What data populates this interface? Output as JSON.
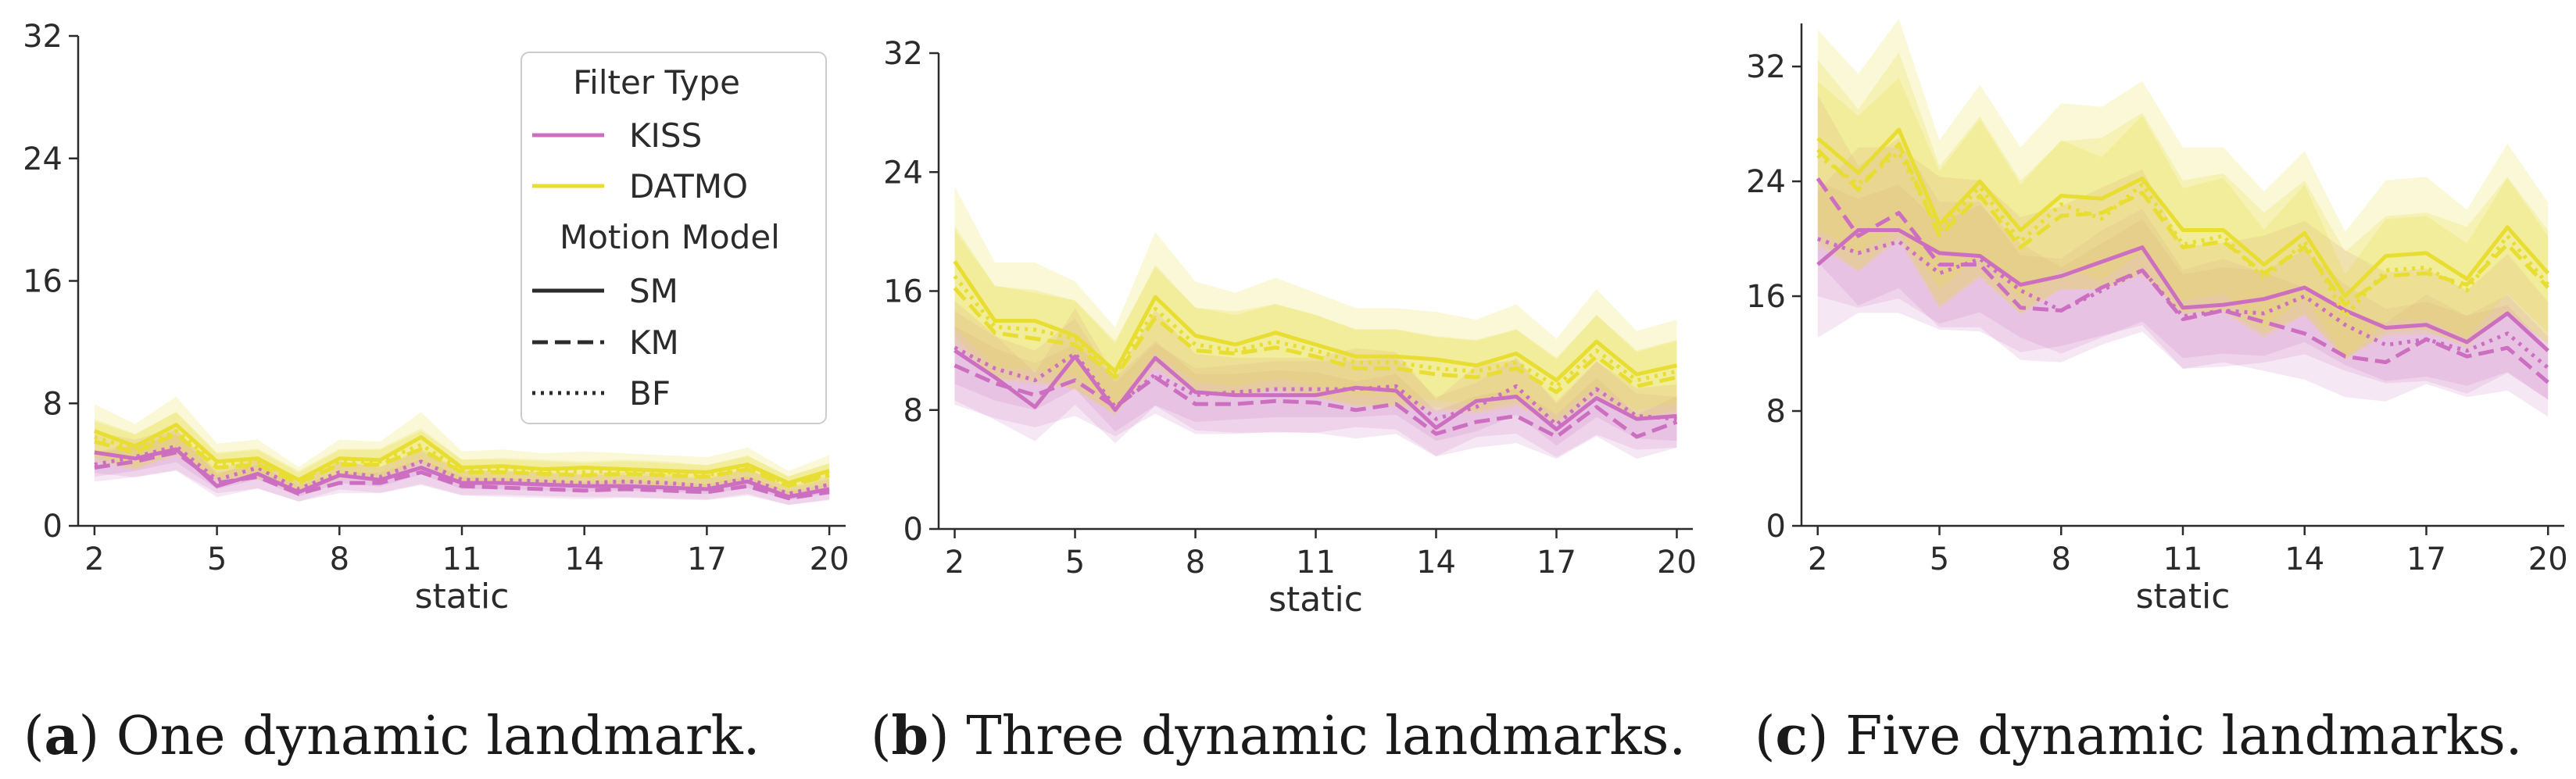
{
  "colors": {
    "KISS": "#cc6fc0",
    "DATMO": "#e8dd32",
    "axis": "#2b2b2b"
  },
  "legend": {
    "title1": "Filter Type",
    "title2": "Motion Model",
    "filters": [
      {
        "name": "KISS"
      },
      {
        "name": "DATMO"
      }
    ],
    "models": [
      {
        "name": "SM",
        "style": "solid"
      },
      {
        "name": "KM",
        "style": "dashed"
      },
      {
        "name": "BF",
        "style": "dotted"
      }
    ]
  },
  "chart_data": [
    {
      "type": "line",
      "panel": "a",
      "caption_letter": "a",
      "caption_text": "One dynamic landmark.",
      "xlabel": "static",
      "xlim": [
        1.6,
        20.4
      ],
      "ylim": [
        0,
        32
      ],
      "xticks": [
        "2",
        "5",
        "8",
        "11",
        "14",
        "17",
        "20"
      ],
      "yticks": [
        "0",
        "8",
        "16",
        "24",
        "32"
      ],
      "x": [
        2,
        3,
        4,
        5,
        6,
        7,
        8,
        9,
        10,
        11,
        12,
        13,
        14,
        15,
        16,
        17,
        18,
        19,
        20
      ],
      "series": [
        {
          "name": "KISS",
          "model": "SM",
          "values": [
            4.8,
            4.4,
            5.0,
            2.6,
            3.4,
            2.2,
            3.3,
            3.0,
            3.8,
            2.8,
            2.8,
            2.7,
            2.6,
            2.6,
            2.5,
            2.4,
            2.9,
            1.9,
            2.4
          ]
        },
        {
          "name": "KISS",
          "model": "KM",
          "values": [
            3.8,
            4.2,
            4.8,
            2.8,
            3.2,
            2.1,
            2.8,
            2.8,
            3.5,
            2.6,
            2.5,
            2.4,
            2.3,
            2.4,
            2.3,
            2.2,
            2.6,
            1.8,
            2.2
          ]
        },
        {
          "name": "KISS",
          "model": "BF",
          "values": [
            4.0,
            4.5,
            5.2,
            3.0,
            3.8,
            2.4,
            3.5,
            3.2,
            4.2,
            3.0,
            3.0,
            2.9,
            2.8,
            2.9,
            2.8,
            2.6,
            3.1,
            2.1,
            2.7
          ]
        },
        {
          "name": "DATMO",
          "model": "SM",
          "values": [
            6.2,
            5.2,
            6.6,
            4.2,
            4.4,
            3.0,
            4.4,
            4.3,
            5.8,
            3.8,
            3.9,
            3.7,
            3.8,
            3.7,
            3.6,
            3.5,
            4.0,
            2.8,
            3.6
          ]
        },
        {
          "name": "DATMO",
          "model": "KM",
          "values": [
            5.5,
            4.8,
            6.0,
            3.8,
            4.0,
            2.8,
            4.0,
            4.0,
            5.0,
            3.5,
            3.5,
            3.4,
            3.3,
            3.4,
            3.3,
            3.2,
            3.7,
            2.6,
            3.3
          ]
        },
        {
          "name": "DATMO",
          "model": "BF",
          "values": [
            5.8,
            5.0,
            6.2,
            4.0,
            4.2,
            3.0,
            4.2,
            4.2,
            5.3,
            3.6,
            3.7,
            3.6,
            3.5,
            3.6,
            3.5,
            3.3,
            3.8,
            2.7,
            3.4
          ]
        }
      ]
    },
    {
      "type": "line",
      "panel": "b",
      "caption_letter": "b",
      "caption_text": "Three dynamic landmarks.",
      "xlabel": "static",
      "xlim": [
        1.6,
        20.4
      ],
      "ylim": [
        0,
        32
      ],
      "xticks": [
        "2",
        "5",
        "8",
        "11",
        "14",
        "17",
        "20"
      ],
      "yticks": [
        "0",
        "8",
        "16",
        "24",
        "32"
      ],
      "x": [
        2,
        3,
        4,
        5,
        6,
        7,
        8,
        9,
        10,
        11,
        12,
        13,
        14,
        15,
        16,
        17,
        18,
        19,
        20
      ],
      "series": [
        {
          "name": "KISS",
          "model": "SM",
          "values": [
            12.0,
            10.2,
            8.2,
            11.6,
            8.0,
            11.5,
            9.2,
            9.0,
            9.0,
            9.0,
            9.5,
            9.3,
            6.8,
            8.6,
            8.9,
            6.7,
            8.8,
            7.4,
            7.6
          ]
        },
        {
          "name": "KISS",
          "model": "KM",
          "values": [
            11.0,
            9.8,
            9.0,
            10.0,
            8.2,
            10.2,
            8.4,
            8.4,
            8.6,
            8.5,
            8.0,
            8.4,
            6.4,
            7.2,
            7.6,
            6.2,
            8.2,
            6.2,
            7.2
          ]
        },
        {
          "name": "KISS",
          "model": "BF",
          "values": [
            12.2,
            10.8,
            10.0,
            11.8,
            8.2,
            10.4,
            9.0,
            9.2,
            9.4,
            9.4,
            9.4,
            9.6,
            7.4,
            8.2,
            9.6,
            7.0,
            9.4,
            7.6,
            7.4
          ]
        },
        {
          "name": "DATMO",
          "model": "SM",
          "values": [
            18.0,
            14.0,
            14.0,
            13.0,
            10.6,
            15.6,
            13.0,
            12.4,
            13.2,
            12.4,
            11.6,
            11.6,
            11.4,
            11.0,
            11.8,
            10.0,
            12.6,
            10.4,
            11.0
          ]
        },
        {
          "name": "DATMO",
          "model": "KM",
          "values": [
            16.2,
            13.2,
            12.8,
            12.4,
            10.2,
            14.2,
            12.0,
            11.8,
            12.2,
            11.6,
            10.8,
            10.8,
            10.4,
            10.2,
            10.8,
            9.2,
            11.6,
            9.6,
            10.2
          ]
        },
        {
          "name": "DATMO",
          "model": "BF",
          "values": [
            17.0,
            13.6,
            13.4,
            12.8,
            10.4,
            14.8,
            12.4,
            12.0,
            12.6,
            12.0,
            11.2,
            11.2,
            10.8,
            10.6,
            11.2,
            9.6,
            12.0,
            10.0,
            10.6
          ]
        }
      ]
    },
    {
      "type": "line",
      "panel": "c",
      "caption_letter": "c",
      "caption_text": "Five dynamic landmarks.",
      "xlabel": "static",
      "xlim": [
        1.6,
        20.4
      ],
      "ylim": [
        0,
        35
      ],
      "xticks": [
        "2",
        "5",
        "8",
        "11",
        "14",
        "17",
        "20"
      ],
      "yticks": [
        "0",
        "8",
        "16",
        "24",
        "32"
      ],
      "x": [
        2,
        3,
        4,
        5,
        6,
        7,
        8,
        9,
        10,
        11,
        12,
        13,
        14,
        15,
        16,
        17,
        18,
        19,
        20
      ],
      "series": [
        {
          "name": "KISS",
          "model": "SM",
          "values": [
            18.2,
            20.6,
            20.6,
            19.0,
            18.8,
            16.8,
            17.4,
            18.4,
            19.4,
            15.2,
            15.4,
            15.8,
            16.6,
            15.0,
            13.8,
            14.0,
            12.8,
            14.8,
            12.2
          ]
        },
        {
          "name": "KISS",
          "model": "KM",
          "values": [
            24.2,
            20.2,
            21.8,
            18.2,
            18.2,
            15.2,
            15.0,
            16.6,
            17.8,
            14.4,
            15.0,
            14.2,
            13.4,
            11.8,
            11.4,
            13.0,
            11.8,
            12.4,
            10.0
          ]
        },
        {
          "name": "KISS",
          "model": "BF",
          "values": [
            20.0,
            19.0,
            19.8,
            17.6,
            18.6,
            16.4,
            15.0,
            16.4,
            17.8,
            14.6,
            15.0,
            14.8,
            16.0,
            14.0,
            12.6,
            13.0,
            12.2,
            13.4,
            11.0
          ]
        },
        {
          "name": "DATMO",
          "model": "SM",
          "values": [
            27.0,
            24.6,
            27.6,
            21.0,
            24.0,
            20.6,
            23.0,
            22.8,
            24.2,
            20.6,
            20.6,
            18.2,
            20.4,
            16.0,
            18.8,
            19.0,
            17.2,
            20.8,
            17.6
          ]
        },
        {
          "name": "DATMO",
          "model": "KM",
          "values": [
            26.2,
            23.4,
            26.6,
            20.2,
            23.0,
            19.4,
            21.6,
            21.8,
            23.2,
            19.4,
            19.8,
            17.6,
            19.4,
            15.4,
            17.4,
            17.6,
            16.8,
            19.6,
            16.6
          ]
        },
        {
          "name": "DATMO",
          "model": "BF",
          "values": [
            25.8,
            23.8,
            26.0,
            20.6,
            23.6,
            19.8,
            22.4,
            21.4,
            23.8,
            19.6,
            20.2,
            17.2,
            19.8,
            14.6,
            17.8,
            18.0,
            16.4,
            20.2,
            16.8
          ]
        }
      ]
    }
  ]
}
